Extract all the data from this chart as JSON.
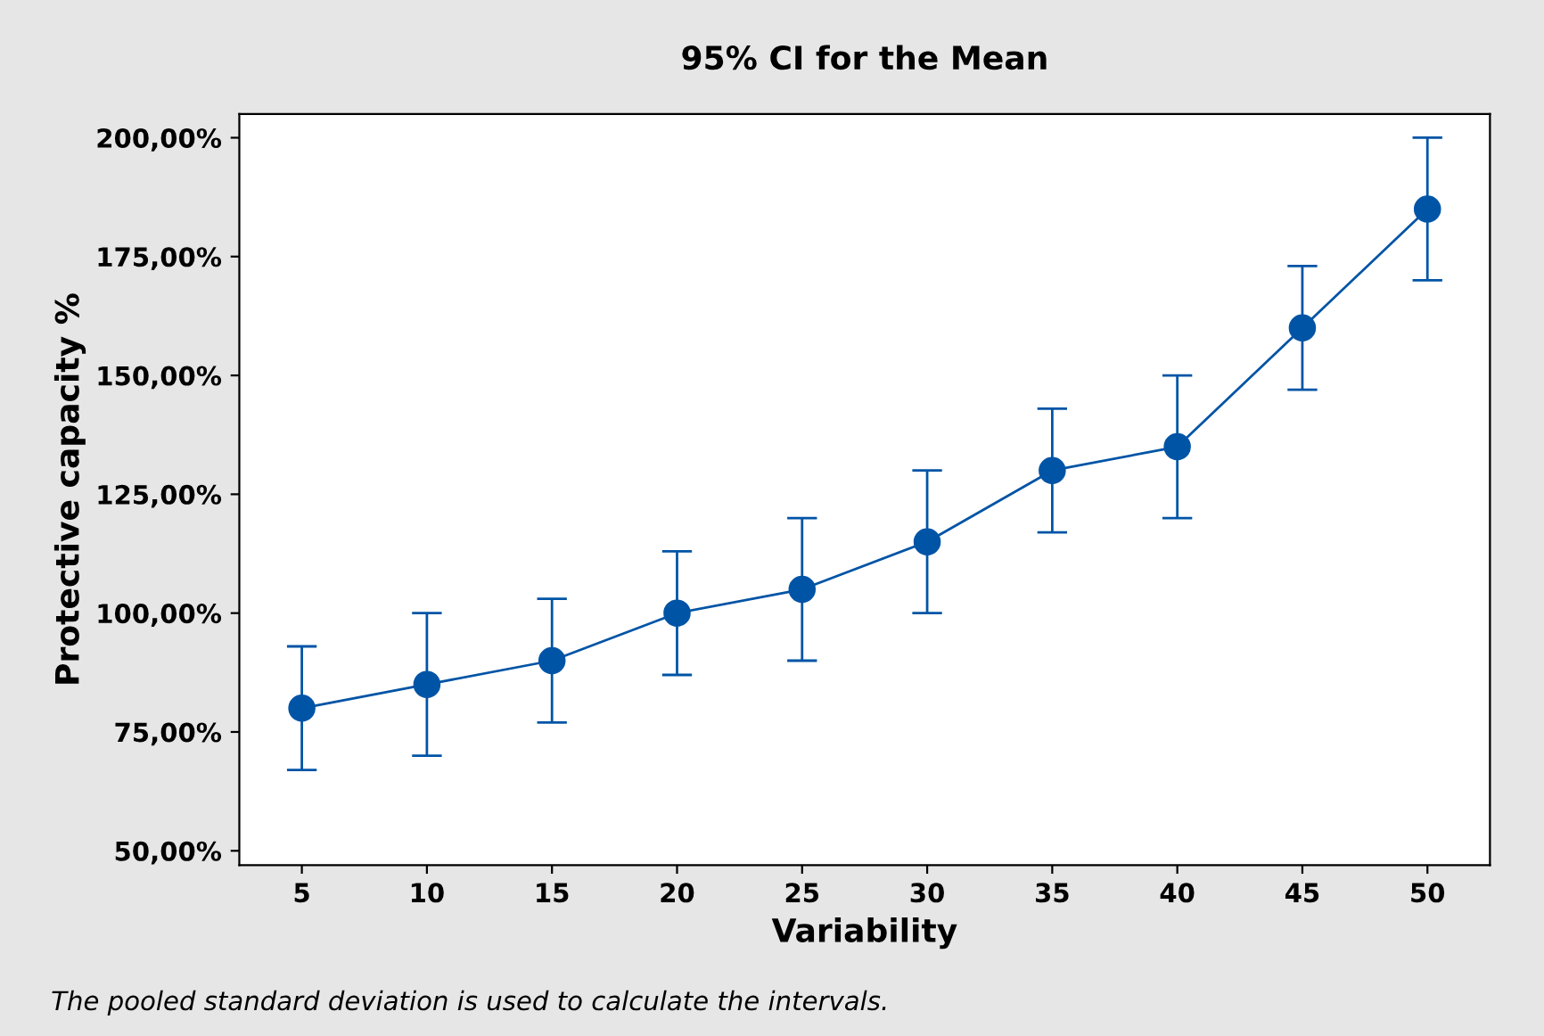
{
  "chart_data": {
    "type": "line",
    "title": "95% CI for the Mean",
    "xlabel": "Variability",
    "ylabel": "Protective capacity %",
    "categories": [
      "5",
      "10",
      "15",
      "20",
      "25",
      "30",
      "35",
      "40",
      "45",
      "50"
    ],
    "series": [
      {
        "color": "#0054a6",
        "values": [
          80,
          85,
          90,
          100,
          105,
          115,
          130,
          135,
          160,
          185
        ],
        "errors": [
          13,
          15,
          13,
          13,
          15,
          15,
          13,
          15,
          13,
          15
        ]
      }
    ],
    "ylim": [
      47,
      205
    ],
    "yticks": [
      {
        "value": 50,
        "label": "50,00%"
      },
      {
        "value": 75,
        "label": "75,00%"
      },
      {
        "value": 100,
        "label": "100,00%"
      },
      {
        "value": 125,
        "label": "125,00%"
      },
      {
        "value": 150,
        "label": "150,00%"
      },
      {
        "value": 175,
        "label": "175,00%"
      },
      {
        "value": 200,
        "label": "200,00%"
      }
    ],
    "marker": "circle",
    "line_style": "solid",
    "grid": false,
    "legend": false,
    "annotations": [
      "The pooled standard deviation is used to calculate the intervals."
    ]
  }
}
